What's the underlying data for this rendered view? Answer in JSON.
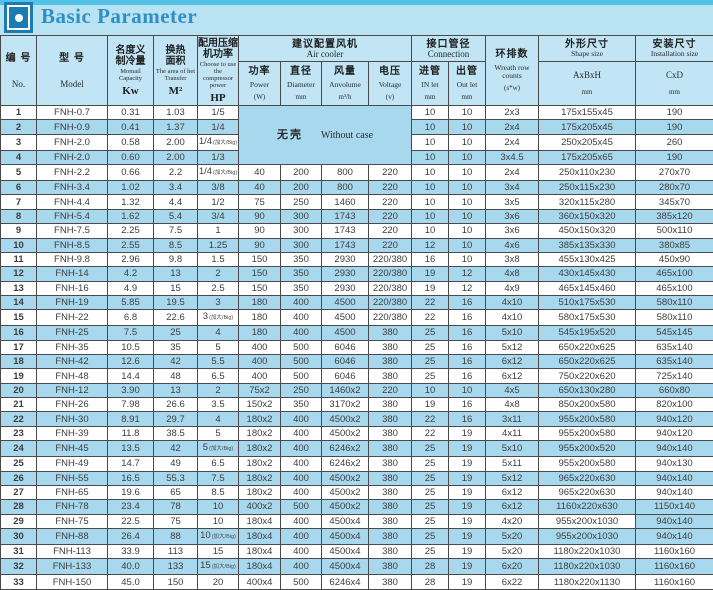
{
  "title": {
    "text": "Basic Parameter"
  },
  "colors": {
    "page_bg": "#c1e5f4",
    "topstrip": "#52c3e6",
    "title_text": "#2f8fc5",
    "icon_blue": "#1b7cb4",
    "row_even_bg": "#a8d8ee",
    "row_odd_bg": "#ffffff",
    "border": "#4a4a4a"
  },
  "table": {
    "headers": {
      "no_zh": "编 号",
      "no_en": "No.",
      "model_zh": "型 号",
      "model_en": "Model",
      "capacity_zh1": "名度义",
      "capacity_zh2": "制冷量",
      "capacity_en": "Momail Capacity",
      "capacity_unit": "Kw",
      "area_zh1": "换热",
      "area_zh2": "面积",
      "area_en": "The area of het Transfer",
      "area_unit": "M²",
      "hp_zh1": "配用压缩",
      "hp_zh2": "机功率",
      "hp_en": "Choose to use the compressor power",
      "hp_unit": "HP",
      "aircooler_zh": "建议配置风机",
      "aircooler_en": "Air cooler",
      "power_zh": "功率",
      "power_en": "Power",
      "power_unit": "(W)",
      "diameter_zh": "直径",
      "diameter_en": "Diameter",
      "diameter_unit": "mm",
      "airflow_zh": "风量",
      "airflow_en": "Anvolume",
      "airflow_unit": "m³/h",
      "voltage_zh": "电压",
      "voltage_en": "Voltage",
      "voltage_unit": "(v)",
      "connection_zh": "接口管径",
      "connection_en": "Connection",
      "inlet_zh": "进管",
      "inlet_en": "IN let",
      "inlet_unit": "mm",
      "outlet_zh": "出管",
      "outlet_en": "Out let",
      "outlet_unit": "mm",
      "wreath_zh": "环排数",
      "wreath_en": "Wreath row counts",
      "wreath_unit": "(s*w)",
      "shape_zh": "外形尺寸",
      "shape_en": "Shape size",
      "shape_sub": "AxBxH",
      "shape_unit": "mm",
      "install_zh": "安装尺寸",
      "install_en": "Installation size",
      "install_sub": "CxD",
      "install_unit": "mm"
    },
    "no_case": {
      "zh": "无壳",
      "en": "Without case"
    },
    "big_note": "(加大/Big)",
    "rows": [
      {
        "no": "1",
        "model": "FNH-0.7",
        "kw": "0.31",
        "m2": "1.03",
        "hp": "1/5",
        "inlet": "10",
        "outlet": "10",
        "wreath": "2x3",
        "shape": "175x155x45",
        "cxd": "190"
      },
      {
        "no": "2",
        "model": "FNH-0.9",
        "kw": "0.41",
        "m2": "1.37",
        "hp": "1/4",
        "inlet": "10",
        "outlet": "10",
        "wreath": "2x4",
        "shape": "175x205x45",
        "cxd": "190"
      },
      {
        "no": "3",
        "model": "FNH-2.0",
        "kw": "0.58",
        "m2": "2.00",
        "hp": "1/4",
        "big": true,
        "inlet": "10",
        "outlet": "10",
        "wreath": "2x4",
        "shape": "250x205x45",
        "cxd": "260"
      },
      {
        "no": "4",
        "model": "FNH-2.0",
        "kw": "0.60",
        "m2": "2.00",
        "hp": "1/3",
        "inlet": "10",
        "outlet": "10",
        "wreath": "3x4.5",
        "shape": "175x205x65",
        "cxd": "190"
      },
      {
        "no": "5",
        "model": "FNH-2.2",
        "kw": "0.66",
        "m2": "2.2",
        "hp": "1/4",
        "big": true,
        "power": "40",
        "dia": "200",
        "air": "800",
        "volt": "220",
        "inlet": "10",
        "outlet": "10",
        "wreath": "2x4",
        "shape": "250x110x230",
        "cxd": "270x70"
      },
      {
        "no": "6",
        "model": "FNH-3.4",
        "kw": "1.02",
        "m2": "3.4",
        "hp": "3/8",
        "power": "40",
        "dia": "200",
        "air": "800",
        "volt": "220",
        "inlet": "10",
        "outlet": "10",
        "wreath": "3x4",
        "shape": "250x115x230",
        "cxd": "280x70"
      },
      {
        "no": "7",
        "model": "FNH-4.4",
        "kw": "1.32",
        "m2": "4.4",
        "hp": "1/2",
        "power": "75",
        "dia": "250",
        "air": "1460",
        "volt": "220",
        "inlet": "10",
        "outlet": "10",
        "wreath": "3x5",
        "shape": "320x115x280",
        "cxd": "345x70"
      },
      {
        "no": "8",
        "model": "FNH-5.4",
        "kw": "1.62",
        "m2": "5.4",
        "hp": "3/4",
        "power": "90",
        "dia": "300",
        "air": "1743",
        "volt": "220",
        "inlet": "10",
        "outlet": "10",
        "wreath": "3x6",
        "shape": "360x150x320",
        "cxd": "385x120"
      },
      {
        "no": "9",
        "model": "FNH-7.5",
        "kw": "2.25",
        "m2": "7.5",
        "hp": "1",
        "power": "90",
        "dia": "300",
        "air": "1743",
        "volt": "220",
        "inlet": "10",
        "outlet": "10",
        "wreath": "3x6",
        "shape": "450x150x320",
        "cxd": "500x110"
      },
      {
        "no": "10",
        "model": "FNH-8.5",
        "kw": "2.55",
        "m2": "8.5",
        "hp": "1.25",
        "power": "90",
        "dia": "300",
        "air": "1743",
        "volt": "220",
        "inlet": "12",
        "outlet": "10",
        "wreath": "4x6",
        "shape": "385x135x330",
        "cxd": "380x85"
      },
      {
        "no": "11",
        "model": "FNH-9.8",
        "kw": "2.96",
        "m2": "9.8",
        "hp": "1.5",
        "power": "150",
        "dia": "350",
        "air": "2930",
        "volt": "220/380",
        "inlet": "16",
        "outlet": "10",
        "wreath": "3x8",
        "shape": "455x130x425",
        "cxd": "450x90"
      },
      {
        "no": "12",
        "model": "FNH-14",
        "kw": "4.2",
        "m2": "13",
        "hp": "2",
        "power": "150",
        "dia": "350",
        "air": "2930",
        "volt": "220/380",
        "inlet": "19",
        "outlet": "12",
        "wreath": "4x8",
        "shape": "430x145x430",
        "cxd": "465x100"
      },
      {
        "no": "13",
        "model": "FNH-16",
        "kw": "4.9",
        "m2": "15",
        "hp": "2.5",
        "power": "150",
        "dia": "350",
        "air": "2930",
        "volt": "220/380",
        "inlet": "19",
        "outlet": "12",
        "wreath": "4x9",
        "shape": "465x145x460",
        "cxd": "465x100"
      },
      {
        "no": "14",
        "model": "FNH-19",
        "kw": "5.85",
        "m2": "19.5",
        "hp": "3",
        "power": "180",
        "dia": "400",
        "air": "4500",
        "volt": "220/380",
        "inlet": "22",
        "outlet": "16",
        "wreath": "4x10",
        "shape": "510x175x530",
        "cxd": "580x110"
      },
      {
        "no": "15",
        "model": "FNH-22",
        "kw": "6.8",
        "m2": "22.6",
        "hp": "3",
        "big": true,
        "power": "180",
        "dia": "400",
        "air": "4500",
        "volt": "220/380",
        "inlet": "22",
        "outlet": "16",
        "wreath": "4x10",
        "shape": "580x175x530",
        "cxd": "580x110"
      },
      {
        "no": "16",
        "model": "FNH-25",
        "kw": "7.5",
        "m2": "25",
        "hp": "4",
        "power": "180",
        "dia": "400",
        "air": "4500",
        "volt": "380",
        "inlet": "25",
        "outlet": "16",
        "wreath": "5x10",
        "shape": "545x195x520",
        "cxd": "545x145"
      },
      {
        "no": "17",
        "model": "FNH-35",
        "kw": "10.5",
        "m2": "35",
        "hp": "5",
        "power": "400",
        "dia": "500",
        "air": "6046",
        "volt": "380",
        "inlet": "25",
        "outlet": "16",
        "wreath": "5x12",
        "shape": "650x220x625",
        "cxd": "635x140"
      },
      {
        "no": "18",
        "model": "FNH-42",
        "kw": "12.6",
        "m2": "42",
        "hp": "5.5",
        "power": "400",
        "dia": "500",
        "air": "6046",
        "volt": "380",
        "inlet": "25",
        "outlet": "16",
        "wreath": "6x12",
        "shape": "650x220x625",
        "cxd": "635x140"
      },
      {
        "no": "19",
        "model": "FNH-48",
        "kw": "14.4",
        "m2": "48",
        "hp": "6.5",
        "power": "400",
        "dia": "500",
        "air": "6046",
        "volt": "380",
        "inlet": "25",
        "outlet": "16",
        "wreath": "6x12",
        "shape": "750x220x620",
        "cxd": "725x140"
      },
      {
        "no": "20",
        "model": "FNH-12",
        "kw": "3.90",
        "m2": "13",
        "hp": "2",
        "power": "75x2",
        "dia": "250",
        "air": "1460x2",
        "volt": "220",
        "inlet": "10",
        "outlet": "10",
        "wreath": "4x5",
        "shape": "650x130x280",
        "cxd": "660x80"
      },
      {
        "no": "21",
        "model": "FNH-26",
        "kw": "7.98",
        "m2": "26.6",
        "hp": "3.5",
        "power": "150x2",
        "dia": "350",
        "air": "3170x2",
        "volt": "380",
        "inlet": "19",
        "outlet": "16",
        "wreath": "4x8",
        "shape": "850x200x580",
        "cxd": "820x100"
      },
      {
        "no": "22",
        "model": "FNH-30",
        "kw": "8.91",
        "m2": "29.7",
        "hp": "4",
        "power": "180x2",
        "dia": "400",
        "air": "4500x2",
        "volt": "380",
        "inlet": "22",
        "outlet": "16",
        "wreath": "3x11",
        "shape": "955x200x580",
        "cxd": "940x120"
      },
      {
        "no": "23",
        "model": "FNH-39",
        "kw": "11.8",
        "m2": "38.5",
        "hp": "5",
        "power": "180x2",
        "dia": "400",
        "air": "4500x2",
        "volt": "380",
        "inlet": "22",
        "outlet": "19",
        "wreath": "4x11",
        "shape": "955x200x580",
        "cxd": "940x120"
      },
      {
        "no": "24",
        "model": "FNH-45",
        "kw": "13.5",
        "m2": "42",
        "hp": "5",
        "big": true,
        "power": "180x2",
        "dia": "400",
        "air": "6246x2",
        "volt": "380",
        "inlet": "25",
        "outlet": "19",
        "wreath": "5x10",
        "shape": "955x200x520",
        "cxd": "940x140"
      },
      {
        "no": "25",
        "model": "FNH-49",
        "kw": "14.7",
        "m2": "49",
        "hp": "6.5",
        "power": "180x2",
        "dia": "400",
        "air": "6246x2",
        "volt": "380",
        "inlet": "25",
        "outlet": "19",
        "wreath": "5x11",
        "shape": "955x200x580",
        "cxd": "940x130"
      },
      {
        "no": "26",
        "model": "FNH-55",
        "kw": "16.5",
        "m2": "55.3",
        "hp": "7.5",
        "power": "180x2",
        "dia": "400",
        "air": "4500x2",
        "volt": "380",
        "inlet": "25",
        "outlet": "19",
        "wreath": "5x12",
        "shape": "965x220x630",
        "cxd": "940x140"
      },
      {
        "no": "27",
        "model": "FNH-65",
        "kw": "19.6",
        "m2": "65",
        "hp": "8.5",
        "power": "180x2",
        "dia": "400",
        "air": "4500x2",
        "volt": "380",
        "inlet": "25",
        "outlet": "19",
        "wreath": "6x12",
        "shape": "965x220x630",
        "cxd": "940x140"
      },
      {
        "no": "28",
        "model": "FNH-78",
        "kw": "23.4",
        "m2": "78",
        "hp": "10",
        "power": "400x2",
        "dia": "500",
        "air": "4500x2",
        "volt": "380",
        "inlet": "25",
        "outlet": "19",
        "wreath": "6x12",
        "shape": "1160x220x630",
        "cxd": "1150x140"
      },
      {
        "no": "29",
        "model": "FNH-75",
        "kw": "22.5",
        "m2": "75",
        "hp": "10",
        "power": "180x4",
        "dia": "400",
        "air": "4500x4",
        "volt": "380",
        "inlet": "25",
        "outlet": "19",
        "wreath": "4x20",
        "shape": "955x200x1030",
        "cxd": "940x140",
        "hl": true
      },
      {
        "no": "30",
        "model": "FNH-88",
        "kw": "26.4",
        "m2": "88",
        "hp": "10",
        "big": true,
        "power": "180x4",
        "dia": "400",
        "air": "4500x4",
        "volt": "380",
        "inlet": "25",
        "outlet": "19",
        "wreath": "5x20",
        "shape": "955x200x1030",
        "cxd": "940x140"
      },
      {
        "no": "31",
        "model": "FNH-113",
        "kw": "33.9",
        "m2": "113",
        "hp": "15",
        "power": "180x4",
        "dia": "400",
        "air": "4500x4",
        "volt": "380",
        "inlet": "25",
        "outlet": "19",
        "wreath": "5x20",
        "shape": "1180x220x1030",
        "cxd": "1160x160"
      },
      {
        "no": "32",
        "model": "FNH-133",
        "kw": "40.0",
        "m2": "133",
        "hp": "15",
        "big": true,
        "power": "180x4",
        "dia": "400",
        "air": "4500x4",
        "volt": "380",
        "inlet": "28",
        "outlet": "19",
        "wreath": "6x20",
        "shape": "1180x220x1030",
        "cxd": "1160x160"
      },
      {
        "no": "33",
        "model": "FNH-150",
        "kw": "45.0",
        "m2": "150",
        "hp": "20",
        "power": "400x4",
        "dia": "500",
        "air": "6246x4",
        "volt": "380",
        "inlet": "28",
        "outlet": "19",
        "wreath": "6x22",
        "shape": "1180x220x1130",
        "cxd": "1160x160"
      }
    ]
  }
}
